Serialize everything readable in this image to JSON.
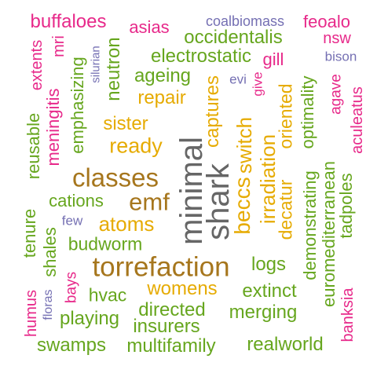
{
  "palette": {
    "green": "#66a61e",
    "pink": "#e7298a",
    "gold": "#e6ab02",
    "brown": "#a6761d",
    "purple": "#7570b3",
    "gray": "#666666"
  },
  "words": [
    {
      "text": "minimal",
      "color": "gray"
    },
    {
      "text": "shark",
      "color": "gray"
    },
    {
      "text": "torrefaction",
      "color": "brown"
    },
    {
      "text": "classes",
      "color": "brown"
    },
    {
      "text": "emf",
      "color": "brown"
    },
    {
      "text": "atoms",
      "color": "gold"
    },
    {
      "text": "ready",
      "color": "gold"
    },
    {
      "text": "sister",
      "color": "gold"
    },
    {
      "text": "repair",
      "color": "gold"
    },
    {
      "text": "captures",
      "color": "gold"
    },
    {
      "text": "switch",
      "color": "gold"
    },
    {
      "text": "beccs",
      "color": "gold"
    },
    {
      "text": "irradiation",
      "color": "gold"
    },
    {
      "text": "decatur",
      "color": "gold"
    },
    {
      "text": "oriented",
      "color": "gold"
    },
    {
      "text": "womens",
      "color": "gold"
    },
    {
      "text": "buffaloes",
      "color": "pink"
    },
    {
      "text": "asias",
      "color": "pink"
    },
    {
      "text": "feoalo",
      "color": "pink"
    },
    {
      "text": "nsw",
      "color": "pink"
    },
    {
      "text": "gill",
      "color": "pink"
    },
    {
      "text": "give",
      "color": "pink"
    },
    {
      "text": "mri",
      "color": "pink"
    },
    {
      "text": "extents",
      "color": "pink"
    },
    {
      "text": "meningitis",
      "color": "pink"
    },
    {
      "text": "agave",
      "color": "pink"
    },
    {
      "text": "aculeatus",
      "color": "pink"
    },
    {
      "text": "bays",
      "color": "pink"
    },
    {
      "text": "humus",
      "color": "pink"
    },
    {
      "text": "banksia",
      "color": "pink"
    },
    {
      "text": "coalbiomass",
      "color": "purple"
    },
    {
      "text": "bison",
      "color": "purple"
    },
    {
      "text": "silurian",
      "color": "purple"
    },
    {
      "text": "evi",
      "color": "purple"
    },
    {
      "text": "few",
      "color": "purple"
    },
    {
      "text": "floras",
      "color": "purple"
    },
    {
      "text": "occidentalis",
      "color": "green"
    },
    {
      "text": "electrostatic",
      "color": "green"
    },
    {
      "text": "ageing",
      "color": "green"
    },
    {
      "text": "neutron",
      "color": "green"
    },
    {
      "text": "emphasizing",
      "color": "green"
    },
    {
      "text": "reusable",
      "color": "green"
    },
    {
      "text": "cations",
      "color": "green"
    },
    {
      "text": "tenure",
      "color": "green"
    },
    {
      "text": "shales",
      "color": "green"
    },
    {
      "text": "budworm",
      "color": "green"
    },
    {
      "text": "hvac",
      "color": "green"
    },
    {
      "text": "playing",
      "color": "green"
    },
    {
      "text": "swamps",
      "color": "green"
    },
    {
      "text": "multifamily",
      "color": "green"
    },
    {
      "text": "insurers",
      "color": "green"
    },
    {
      "text": "directed",
      "color": "green"
    },
    {
      "text": "merging",
      "color": "green"
    },
    {
      "text": "extinct",
      "color": "green"
    },
    {
      "text": "logs",
      "color": "green"
    },
    {
      "text": "realworld",
      "color": "green"
    },
    {
      "text": "optimality",
      "color": "green"
    },
    {
      "text": "demonstrating",
      "color": "green"
    },
    {
      "text": "euromediterranean",
      "color": "green"
    },
    {
      "text": "tadpoles",
      "color": "green"
    }
  ]
}
